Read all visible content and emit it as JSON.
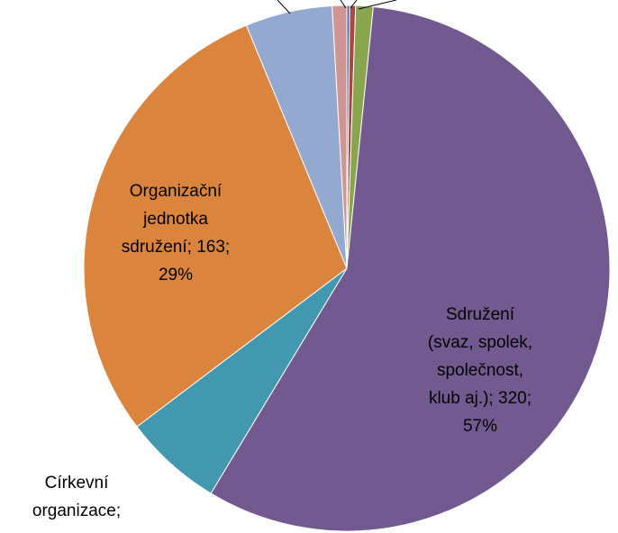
{
  "chart_data": {
    "type": "pie",
    "values": [
      1,
      2,
      6,
      320,
      34,
      163,
      30,
      5
    ],
    "colors": [
      "#4572a7",
      "#aa4643",
      "#89a54e",
      "#72598f",
      "#4198af",
      "#db843d",
      "#93a9cf",
      "#d09593"
    ],
    "data_labels": [
      null,
      null,
      null,
      [
        "Sdružení",
        "(svaz, spolek,",
        "společnost,",
        "klub aj.); 320;",
        "57%"
      ],
      [
        "Církevní",
        "organizace;"
      ],
      [
        "Organizační",
        "jednotka",
        "sdružení; 163;",
        "29%"
      ],
      null,
      null
    ]
  }
}
